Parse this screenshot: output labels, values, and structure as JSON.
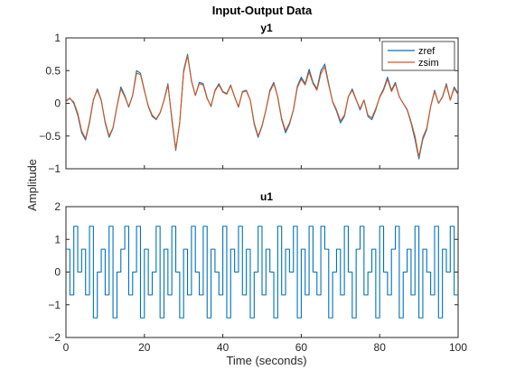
{
  "chart_data": {
    "type": "line",
    "title": "Input-Output Data",
    "xlabel": "Time (seconds)",
    "ylabel": "Amplitude",
    "panels": [
      {
        "name": "y1",
        "xlim": [
          0,
          100
        ],
        "ylim": [
          -1,
          1
        ],
        "xticks": [
          0,
          20,
          40,
          60,
          80,
          100
        ],
        "yticks": [
          -1,
          -0.5,
          0,
          0.5,
          1
        ],
        "legend": "top-right",
        "series": [
          {
            "name": "zref",
            "color": "#0072BD",
            "x": [
              0,
              1,
              2,
              3,
              4,
              5,
              6,
              7,
              8,
              9,
              10,
              11,
              12,
              13,
              14,
              15,
              16,
              17,
              18,
              19,
              20,
              21,
              22,
              23,
              24,
              25,
              26,
              27,
              28,
              29,
              30,
              31,
              32,
              33,
              34,
              35,
              36,
              37,
              38,
              39,
              40,
              41,
              42,
              43,
              44,
              45,
              46,
              47,
              48,
              49,
              50,
              51,
              52,
              53,
              54,
              55,
              56,
              57,
              58,
              59,
              60,
              61,
              62,
              63,
              64,
              65,
              66,
              67,
              68,
              69,
              70,
              71,
              72,
              73,
              74,
              75,
              76,
              77,
              78,
              79,
              80,
              81,
              82,
              83,
              84,
              85,
              86,
              87,
              88,
              89,
              90,
              91,
              92,
              93,
              94,
              95,
              96,
              97,
              98,
              99,
              100
            ],
            "y": [
              0.03,
              0.08,
              0.0,
              -0.18,
              -0.45,
              -0.56,
              -0.3,
              0.05,
              0.22,
              0.05,
              -0.3,
              -0.52,
              -0.38,
              -0.05,
              0.25,
              0.12,
              -0.06,
              0.12,
              0.5,
              0.46,
              0.2,
              -0.05,
              -0.2,
              -0.25,
              -0.15,
              0.05,
              0.3,
              -0.25,
              -0.72,
              -0.3,
              0.5,
              0.75,
              0.35,
              0.12,
              0.32,
              0.3,
              0.08,
              -0.05,
              0.2,
              0.3,
              0.18,
              0.15,
              0.28,
              0.1,
              -0.06,
              0.18,
              0.2,
              0.05,
              -0.32,
              -0.52,
              -0.35,
              -0.1,
              0.2,
              0.32,
              0.1,
              -0.25,
              -0.45,
              -0.32,
              -0.1,
              0.26,
              0.4,
              0.3,
              0.52,
              0.32,
              0.22,
              0.5,
              0.6,
              0.3,
              0.02,
              -0.12,
              -0.3,
              -0.2,
              0.1,
              0.22,
              0.06,
              -0.1,
              0.05,
              -0.2,
              -0.25,
              -0.1,
              0.1,
              0.22,
              0.4,
              0.2,
              0.32,
              0.1,
              0.0,
              -0.1,
              -0.3,
              -0.55,
              -0.85,
              -0.55,
              -0.4,
              -0.05,
              0.2,
              0.0,
              0.1,
              0.3,
              0.05,
              0.25,
              0.15
            ]
          },
          {
            "name": "zsim",
            "color": "#D95319",
            "x": [
              0,
              1,
              2,
              3,
              4,
              5,
              6,
              7,
              8,
              9,
              10,
              11,
              12,
              13,
              14,
              15,
              16,
              17,
              18,
              19,
              20,
              21,
              22,
              23,
              24,
              25,
              26,
              27,
              28,
              29,
              30,
              31,
              32,
              33,
              34,
              35,
              36,
              37,
              38,
              39,
              40,
              41,
              42,
              43,
              44,
              45,
              46,
              47,
              48,
              49,
              50,
              51,
              52,
              53,
              54,
              55,
              56,
              57,
              58,
              59,
              60,
              61,
              62,
              63,
              64,
              65,
              66,
              67,
              68,
              69,
              70,
              71,
              72,
              73,
              74,
              75,
              76,
              77,
              78,
              79,
              80,
              81,
              82,
              83,
              84,
              85,
              86,
              87,
              88,
              89,
              90,
              91,
              92,
              93,
              94,
              95,
              96,
              97,
              98,
              99,
              100
            ],
            "y": [
              0.05,
              0.07,
              0.02,
              -0.15,
              -0.42,
              -0.54,
              -0.28,
              0.06,
              0.2,
              0.04,
              -0.28,
              -0.5,
              -0.37,
              -0.05,
              0.22,
              0.1,
              -0.05,
              0.12,
              0.46,
              0.44,
              0.19,
              -0.04,
              -0.18,
              -0.24,
              -0.14,
              0.04,
              0.28,
              -0.22,
              -0.7,
              -0.3,
              0.47,
              0.73,
              0.34,
              0.12,
              0.3,
              0.28,
              0.07,
              -0.04,
              0.19,
              0.28,
              0.17,
              0.14,
              0.27,
              0.1,
              -0.05,
              0.17,
              0.19,
              0.05,
              -0.3,
              -0.5,
              -0.34,
              -0.1,
              0.18,
              0.3,
              0.1,
              -0.23,
              -0.42,
              -0.3,
              -0.1,
              0.24,
              0.37,
              0.28,
              0.48,
              0.3,
              0.2,
              0.45,
              0.56,
              0.28,
              0.03,
              -0.1,
              -0.27,
              -0.18,
              0.1,
              0.2,
              0.05,
              -0.08,
              0.05,
              -0.18,
              -0.22,
              -0.08,
              0.09,
              0.2,
              0.37,
              0.18,
              0.3,
              0.1,
              0.0,
              -0.09,
              -0.28,
              -0.5,
              -0.82,
              -0.52,
              -0.38,
              -0.05,
              0.18,
              0.0,
              0.09,
              0.28,
              0.05,
              0.23,
              0.13
            ]
          }
        ]
      },
      {
        "name": "u1",
        "xlim": [
          0,
          100
        ],
        "ylim": [
          -2,
          2
        ],
        "xticks": [
          0,
          20,
          40,
          60,
          80,
          100
        ],
        "yticks": [
          -2,
          -1,
          0,
          1,
          2
        ],
        "series": [
          {
            "name": "u1",
            "color": "#0072BD",
            "step": true,
            "x": [
              0,
              1,
              2,
              3,
              4,
              5,
              6,
              7,
              8,
              9,
              10,
              11,
              12,
              13,
              14,
              15,
              16,
              17,
              18,
              19,
              20,
              21,
              22,
              23,
              24,
              25,
              26,
              27,
              28,
              29,
              30,
              31,
              32,
              33,
              34,
              35,
              36,
              37,
              38,
              39,
              40,
              41,
              42,
              43,
              44,
              45,
              46,
              47,
              48,
              49,
              50,
              51,
              52,
              53,
              54,
              55,
              56,
              57,
              58,
              59,
              60,
              61,
              62,
              63,
              64,
              65,
              66,
              67,
              68,
              69,
              70,
              71,
              72,
              73,
              74,
              75,
              76,
              77,
              78,
              79,
              80,
              81,
              82,
              83,
              84,
              85,
              86,
              87,
              88,
              89,
              90,
              91,
              92,
              93,
              94,
              95,
              96,
              97,
              98,
              99
            ],
            "y": [
              0.7,
              -0.7,
              1.4,
              0.0,
              0.7,
              -0.7,
              1.4,
              -1.4,
              0.0,
              0.7,
              -0.7,
              1.4,
              -1.4,
              0.0,
              0.7,
              1.4,
              -0.7,
              0.0,
              1.4,
              -1.4,
              0.7,
              -0.7,
              0.0,
              1.4,
              -1.4,
              0.7,
              -0.7,
              1.4,
              0.0,
              -1.4,
              0.7,
              -0.7,
              1.4,
              0.0,
              -0.7,
              1.4,
              -1.4,
              0.7,
              0.0,
              -0.7,
              1.4,
              -1.4,
              0.7,
              0.0,
              1.4,
              -0.7,
              0.7,
              -1.4,
              0.0,
              1.4,
              -0.7,
              0.7,
              0.0,
              -1.4,
              1.4,
              -0.7,
              0.7,
              0.0,
              1.4,
              -1.4,
              0.7,
              -0.7,
              1.4,
              0.0,
              -0.7,
              1.4,
              0.7,
              -1.4,
              0.0,
              0.7,
              -0.7,
              1.4,
              0.0,
              -1.4,
              0.7,
              1.4,
              -0.7,
              0.0,
              0.7,
              -1.4,
              1.4,
              0.0,
              -0.7,
              0.7,
              1.4,
              -1.4,
              0.0,
              0.7,
              -0.7,
              1.4,
              -1.4,
              0.7,
              0.0,
              -0.7,
              1.4,
              -1.4,
              0.7,
              0.0,
              1.4,
              -0.7
            ]
          }
        ]
      }
    ]
  }
}
